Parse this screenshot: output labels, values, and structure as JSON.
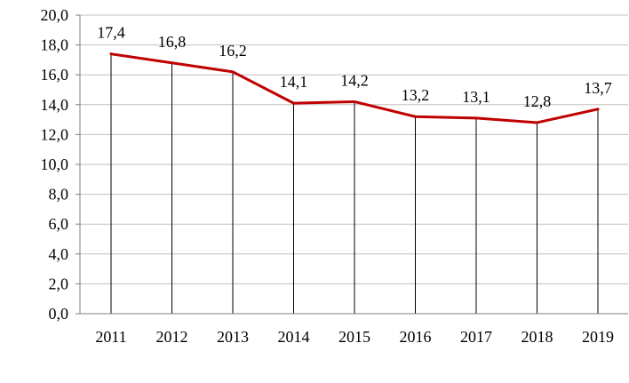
{
  "chart_data": {
    "type": "line",
    "categories": [
      "2011",
      "2012",
      "2013",
      "2014",
      "2015",
      "2016",
      "2017",
      "2018",
      "2019"
    ],
    "series": [
      {
        "values": [
          17.4,
          16.8,
          16.2,
          14.1,
          14.2,
          13.2,
          13.1,
          12.8,
          13.7
        ],
        "color": "#c00000"
      }
    ],
    "data_labels": [
      "17,4",
      "16,8",
      "16,2",
      "14,1",
      "14,2",
      "13,2",
      "13,1",
      "12,8",
      "13,7"
    ],
    "yticks": [
      {
        "value": 0,
        "label": "0,0"
      },
      {
        "value": 2,
        "label": "2,0"
      },
      {
        "value": 4,
        "label": "4,0"
      },
      {
        "value": 6,
        "label": "6,0"
      },
      {
        "value": 8,
        "label": "8,0"
      },
      {
        "value": 10,
        "label": "10,0"
      },
      {
        "value": 12,
        "label": "12,0"
      },
      {
        "value": 14,
        "label": "14,0"
      },
      {
        "value": 16,
        "label": "16,0"
      },
      {
        "value": 18,
        "label": "18,0"
      },
      {
        "value": 20,
        "label": "20,0"
      }
    ],
    "ylim": [
      0,
      20
    ],
    "title": "",
    "xlabel": "",
    "ylabel": "",
    "grid": "horizontal",
    "drop_lines": true,
    "legend": "none"
  }
}
